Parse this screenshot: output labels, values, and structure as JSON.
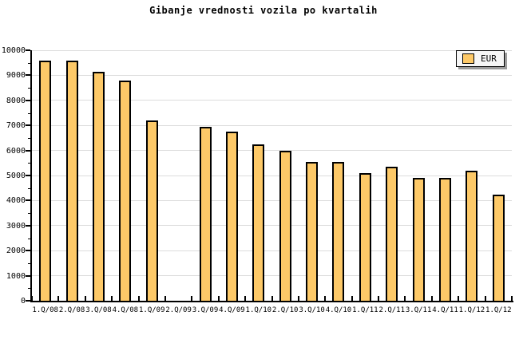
{
  "title": "Gibanje vrednosti vozila po kvartalih",
  "legend": {
    "label": "EUR",
    "position": "top-right"
  },
  "colors": {
    "bar_fill": "#FDC968",
    "bar_border": "#000000",
    "grid": "#DCDCDC",
    "axis": "#000000",
    "background": "#FFFFFF",
    "legend_bg": "#F6F6F6",
    "legend_shadow": "#9C9C9C"
  },
  "chart_data": {
    "type": "bar",
    "title": "Gibanje vrednosti vozila po kvartalih",
    "categories": [
      "1.Q/08",
      "2.Q/08",
      "3.Q/08",
      "4.Q/08",
      "1.Q/09",
      "2.Q/09",
      "3.Q/09",
      "4.Q/09",
      "1.Q/10",
      "2.Q/10",
      "3.Q/10",
      "4.Q/10",
      "1.Q/11",
      "2.Q/11",
      "3.Q/11",
      "4.Q/11",
      "1.Q/12",
      "1.Q/12"
    ],
    "series": [
      {
        "name": "EUR",
        "values": [
          9600,
          9600,
          9150,
          8800,
          7200,
          null,
          6950,
          6750,
          6250,
          6000,
          5550,
          5550,
          5100,
          5350,
          4900,
          4900,
          5200,
          4250
        ]
      }
    ],
    "xlabel": "",
    "ylabel": "",
    "ylim": [
      0,
      10000
    ],
    "y_major_step": 1000,
    "y_minor_step": 500,
    "grid": "horizontal-major",
    "legend_position": "top-right",
    "note_missing_bar": "2.Q/09"
  }
}
